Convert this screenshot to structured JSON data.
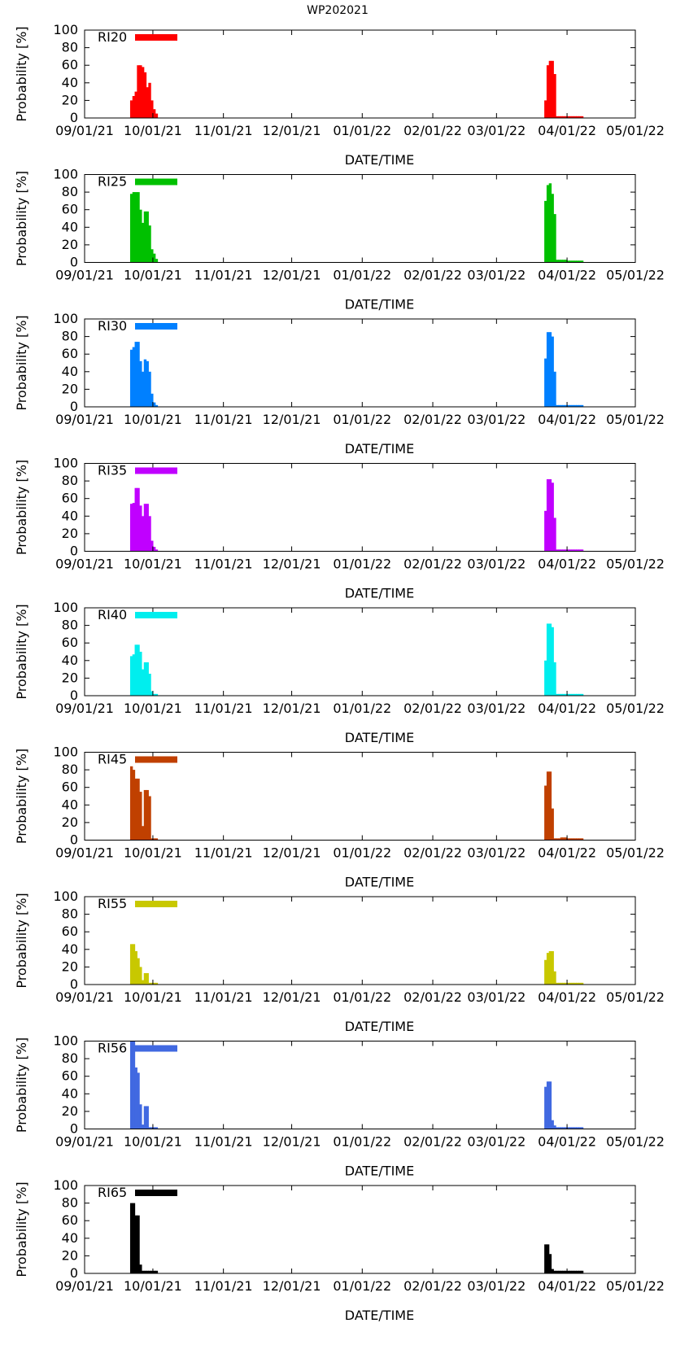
{
  "figure": {
    "title": "WP202021"
  },
  "colors": {
    "RI20": "#ff0000",
    "RI25": "#00c000",
    "RI30": "#0080ff",
    "RI35": "#c000ff",
    "RI40": "#00eeee",
    "RI45": "#c04000",
    "RI55": "#c8c800",
    "RI56": "#4169e1",
    "RI65": "#000000"
  },
  "chart_data": [
    {
      "type": "bar",
      "series_name": "RI20",
      "xlabel": "DATE/TIME",
      "ylabel": "Probability [%]",
      "xlim": [
        "09/01/21",
        "05/01/22"
      ],
      "ylim": [
        0,
        100
      ],
      "yticks": [
        "0",
        "20",
        "40",
        "60",
        "80",
        "100"
      ],
      "xticks": [
        "09/01/21",
        "10/01/21",
        "11/01/21",
        "12/01/21",
        "01/01/22",
        "02/01/22",
        "03/01/22",
        "04/01/22",
        "05/01/22"
      ],
      "x_days": [
        20,
        21,
        22,
        23,
        24,
        25,
        26,
        27,
        28,
        29,
        30,
        31,
        202,
        203,
        204,
        205,
        206,
        207,
        208,
        209,
        210,
        211,
        212,
        213,
        214,
        215,
        216,
        217,
        218
      ],
      "values": [
        20,
        25,
        30,
        60,
        60,
        58,
        52,
        35,
        40,
        20,
        10,
        5,
        20,
        60,
        65,
        65,
        50,
        2,
        2,
        2,
        2,
        2,
        2,
        2,
        2,
        2,
        2,
        2,
        2
      ]
    },
    {
      "type": "bar",
      "series_name": "RI25",
      "xlabel": "DATE/TIME",
      "ylabel": "Probability [%]",
      "xlim": [
        "09/01/21",
        "05/01/22"
      ],
      "ylim": [
        0,
        100
      ],
      "yticks": [
        "0",
        "20",
        "40",
        "60",
        "80",
        "100"
      ],
      "xticks": [
        "09/01/21",
        "10/01/21",
        "11/01/21",
        "12/01/21",
        "01/01/22",
        "02/01/22",
        "03/01/22",
        "04/01/22",
        "05/01/22"
      ],
      "x_days": [
        20,
        21,
        22,
        23,
        24,
        25,
        26,
        27,
        28,
        29,
        30,
        31,
        202,
        203,
        204,
        205,
        206,
        207,
        208,
        209,
        210,
        211,
        212,
        213,
        214,
        215,
        216,
        217,
        218
      ],
      "values": [
        78,
        80,
        80,
        80,
        60,
        45,
        58,
        58,
        42,
        15,
        10,
        4,
        70,
        88,
        90,
        78,
        55,
        3,
        3,
        3,
        3,
        3,
        2,
        2,
        2,
        2,
        2,
        2,
        2
      ]
    },
    {
      "type": "bar",
      "series_name": "RI30",
      "xlabel": "DATE/TIME",
      "ylabel": "Probability [%]",
      "xlim": [
        "09/01/21",
        "05/01/22"
      ],
      "ylim": [
        0,
        100
      ],
      "yticks": [
        "0",
        "20",
        "40",
        "60",
        "80",
        "100"
      ],
      "xticks": [
        "09/01/21",
        "10/01/21",
        "11/01/21",
        "12/01/21",
        "01/01/22",
        "02/01/22",
        "03/01/22",
        "04/01/22",
        "05/01/22"
      ],
      "x_days": [
        20,
        21,
        22,
        23,
        24,
        25,
        26,
        27,
        28,
        29,
        30,
        31,
        202,
        203,
        204,
        205,
        206,
        207,
        208,
        209,
        210,
        211,
        212,
        213,
        214,
        215,
        216,
        217,
        218
      ],
      "values": [
        65,
        68,
        74,
        74,
        52,
        40,
        54,
        52,
        40,
        15,
        5,
        2,
        55,
        85,
        85,
        80,
        40,
        2,
        2,
        2,
        2,
        2,
        2,
        2,
        2,
        2,
        2,
        2,
        2
      ]
    },
    {
      "type": "bar",
      "series_name": "RI35",
      "xlabel": "DATE/TIME",
      "ylabel": "Probability [%]",
      "xlim": [
        "09/01/21",
        "05/01/22"
      ],
      "ylim": [
        0,
        100
      ],
      "yticks": [
        "0",
        "20",
        "40",
        "60",
        "80",
        "100"
      ],
      "xticks": [
        "09/01/21",
        "10/01/21",
        "11/01/21",
        "12/01/21",
        "01/01/22",
        "02/01/22",
        "03/01/22",
        "04/01/22",
        "05/01/22"
      ],
      "x_days": [
        20,
        21,
        22,
        23,
        24,
        25,
        26,
        27,
        28,
        29,
        30,
        31,
        202,
        203,
        204,
        205,
        206,
        207,
        208,
        209,
        210,
        211,
        212,
        213,
        214,
        215,
        216,
        217,
        218
      ],
      "values": [
        54,
        55,
        72,
        72,
        52,
        40,
        54,
        54,
        40,
        12,
        5,
        2,
        46,
        82,
        82,
        78,
        38,
        2,
        2,
        2,
        2,
        2,
        2,
        2,
        2,
        2,
        2,
        2,
        2
      ]
    },
    {
      "type": "bar",
      "series_name": "RI40",
      "xlabel": "DATE/TIME",
      "ylabel": "Probability [%]",
      "xlim": [
        "09/01/21",
        "05/01/22"
      ],
      "ylim": [
        0,
        100
      ],
      "yticks": [
        "0",
        "20",
        "40",
        "60",
        "80",
        "100"
      ],
      "xticks": [
        "09/01/21",
        "10/01/21",
        "11/01/21",
        "12/01/21",
        "01/01/22",
        "02/01/22",
        "03/01/22",
        "04/01/22",
        "05/01/22"
      ],
      "x_days": [
        20,
        21,
        22,
        23,
        24,
        25,
        26,
        27,
        28,
        29,
        30,
        31,
        202,
        203,
        204,
        205,
        206,
        207,
        208,
        209,
        210,
        211,
        212,
        213,
        214,
        215,
        216,
        217,
        218
      ],
      "values": [
        45,
        47,
        58,
        58,
        50,
        30,
        38,
        38,
        25,
        5,
        2,
        2,
        40,
        82,
        82,
        78,
        38,
        2,
        2,
        2,
        2,
        2,
        2,
        2,
        2,
        2,
        2,
        2,
        2
      ]
    },
    {
      "type": "bar",
      "series_name": "RI45",
      "xlabel": "DATE/TIME",
      "ylabel": "Probability [%]",
      "xlim": [
        "09/01/21",
        "05/01/22"
      ],
      "ylim": [
        0,
        100
      ],
      "yticks": [
        "0",
        "20",
        "40",
        "60",
        "80",
        "100"
      ],
      "xticks": [
        "09/01/21",
        "10/01/21",
        "11/01/21",
        "12/01/21",
        "01/01/22",
        "02/01/22",
        "03/01/22",
        "04/01/22",
        "05/01/22"
      ],
      "x_days": [
        20,
        21,
        22,
        23,
        24,
        25,
        26,
        27,
        28,
        29,
        30,
        31,
        202,
        203,
        204,
        205,
        206,
        207,
        208,
        209,
        210,
        211,
        212,
        213,
        214,
        215,
        216,
        217,
        218
      ],
      "values": [
        84,
        80,
        70,
        70,
        55,
        16,
        57,
        57,
        50,
        2,
        2,
        2,
        62,
        78,
        78,
        36,
        2,
        2,
        2,
        3,
        3,
        3,
        2,
        2,
        2,
        2,
        2,
        2,
        2
      ]
    },
    {
      "type": "bar",
      "series_name": "RI55",
      "xlabel": "DATE/TIME",
      "ylabel": "Probability [%]",
      "xlim": [
        "09/01/21",
        "05/01/22"
      ],
      "ylim": [
        0,
        100
      ],
      "yticks": [
        "0",
        "20",
        "40",
        "60",
        "80",
        "100"
      ],
      "xticks": [
        "09/01/21",
        "10/01/21",
        "11/01/21",
        "12/01/21",
        "01/01/22",
        "02/01/22",
        "03/01/22",
        "04/01/22",
        "05/01/22"
      ],
      "x_days": [
        20,
        21,
        22,
        23,
        24,
        25,
        26,
        27,
        28,
        29,
        30,
        31,
        202,
        203,
        204,
        205,
        206,
        207,
        208,
        209,
        210,
        211,
        212,
        213,
        214,
        215,
        216,
        217,
        218
      ],
      "values": [
        46,
        46,
        38,
        30,
        20,
        5,
        13,
        13,
        2,
        2,
        2,
        2,
        28,
        36,
        38,
        38,
        15,
        2,
        2,
        2,
        2,
        2,
        2,
        2,
        2,
        2,
        2,
        2,
        2
      ]
    },
    {
      "type": "bar",
      "series_name": "RI56",
      "xlabel": "DATE/TIME",
      "ylabel": "Probability [%]",
      "xlim": [
        "09/01/21",
        "05/01/22"
      ],
      "ylim": [
        0,
        100
      ],
      "yticks": [
        "0",
        "20",
        "40",
        "60",
        "80",
        "100"
      ],
      "xticks": [
        "09/01/21",
        "10/01/21",
        "11/01/21",
        "12/01/21",
        "01/01/22",
        "02/01/22",
        "03/01/22",
        "04/01/22",
        "05/01/22"
      ],
      "x_days": [
        20,
        21,
        22,
        23,
        24,
        25,
        26,
        27,
        28,
        29,
        30,
        31,
        202,
        203,
        204,
        205,
        206,
        207,
        208,
        209,
        210,
        211,
        212,
        213,
        214,
        215,
        216,
        217,
        218
      ],
      "values": [
        100,
        100,
        70,
        64,
        28,
        5,
        26,
        26,
        2,
        2,
        2,
        2,
        48,
        54,
        54,
        10,
        4,
        2,
        2,
        2,
        2,
        2,
        2,
        2,
        2,
        2,
        2,
        2,
        2
      ]
    },
    {
      "type": "bar",
      "series_name": "RI65",
      "xlabel": "DATE/TIME",
      "ylabel": "Probability [%]",
      "xlim": [
        "09/01/21",
        "05/01/22"
      ],
      "ylim": [
        0,
        100
      ],
      "yticks": [
        "0",
        "20",
        "40",
        "60",
        "80",
        "100"
      ],
      "xticks": [
        "09/01/21",
        "10/01/21",
        "11/01/21",
        "12/01/21",
        "01/01/22",
        "02/01/22",
        "03/01/22",
        "04/01/22",
        "05/01/22"
      ],
      "x_days": [
        20,
        21,
        22,
        23,
        24,
        25,
        26,
        27,
        28,
        29,
        30,
        31,
        202,
        203,
        204,
        205,
        206,
        207,
        208,
        209,
        210,
        211,
        212,
        213,
        214,
        215,
        216,
        217,
        218
      ],
      "values": [
        80,
        80,
        66,
        66,
        10,
        3,
        3,
        3,
        3,
        3,
        3,
        3,
        33,
        33,
        22,
        5,
        3,
        3,
        3,
        3,
        3,
        3,
        3,
        3,
        3,
        3,
        3,
        3,
        3
      ]
    }
  ]
}
